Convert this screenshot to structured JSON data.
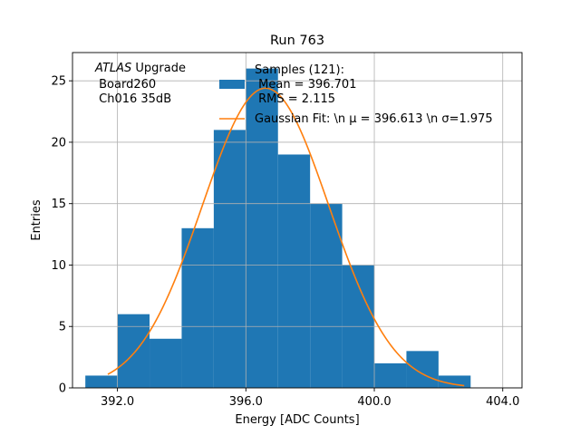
{
  "chart_data": {
    "type": "bar",
    "title": "Run 763",
    "xlabel": "Energy [ADC Counts]",
    "ylabel": "Entries",
    "xlim": [
      390.6,
      404.6
    ],
    "ylim": [
      0,
      27.3
    ],
    "xticks": [
      392,
      396,
      400,
      404
    ],
    "xtick_labels": [
      "392.0",
      "396.0",
      "400.0",
      "404.0"
    ],
    "yticks": [
      0,
      5,
      10,
      15,
      20,
      25
    ],
    "ytick_labels": [
      "0",
      "5",
      "10",
      "15",
      "20",
      "25"
    ],
    "grid": true,
    "bin_edges": [
      391,
      392,
      393,
      394,
      395,
      396,
      397,
      398,
      399,
      400,
      401,
      402,
      403
    ],
    "values": [
      1,
      6,
      4,
      13,
      21,
      26,
      19,
      15,
      10,
      2,
      3,
      1
    ],
    "fit": {
      "mu": 396.613,
      "sigma": 1.975,
      "amplitude": 24.4,
      "x_range": [
        391.7,
        402.8
      ]
    },
    "annotation": {
      "atlas": "ATLAS",
      "line1_rest": " Upgrade",
      "line2": " Board260",
      "line3": " Ch016 35dB"
    },
    "legend": {
      "position": "upper-center",
      "hist_label_line1": "Samples (121):",
      "hist_label_line2": " Mean = 396.701",
      "hist_label_line3": " RMS = 2.115",
      "fit_label": "Gaussian Fit: \\n μ = 396.613 \\n σ=1.975"
    },
    "colors": {
      "bars": "#1f77b4",
      "fit": "#ff7f0e",
      "grid": "#b0b0b0"
    }
  }
}
